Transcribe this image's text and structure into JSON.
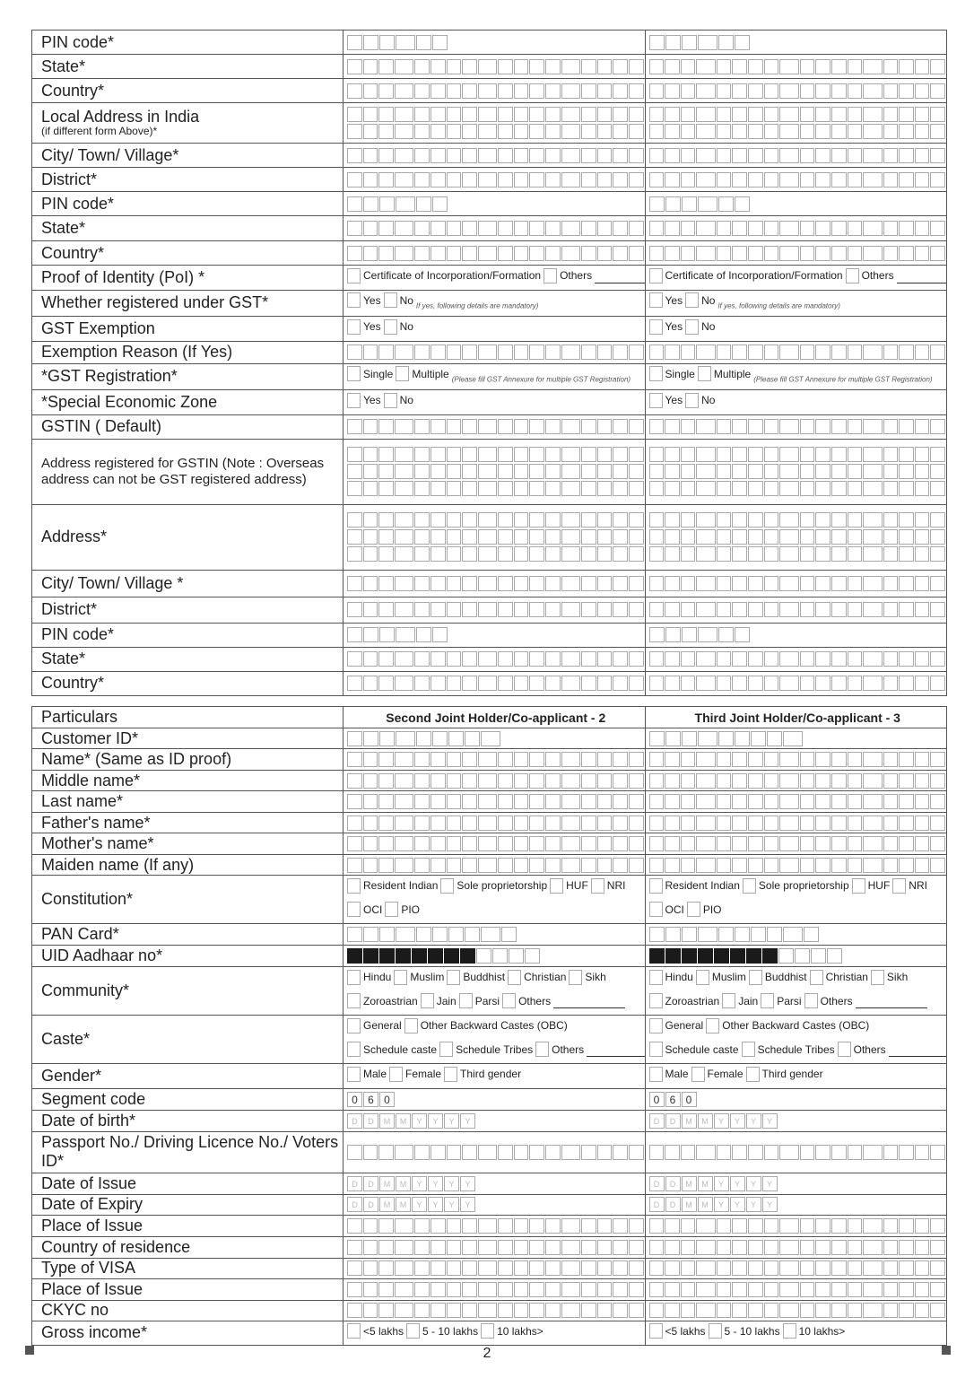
{
  "top_rows": [
    {
      "label": "PIN code*",
      "cell": {
        "kind": "boxes",
        "n": 6
      }
    },
    {
      "label": "State*",
      "cell": {
        "kind": "boxes",
        "n": 18
      }
    },
    {
      "label": "Country*",
      "cell": {
        "kind": "boxes",
        "n": 18
      }
    },
    {
      "label": "Local Address in India",
      "sub": "(if different form Above)*",
      "cell": {
        "kind": "boxes",
        "n": 18,
        "lines": 2
      }
    },
    {
      "label": "City/ Town/ Village*",
      "cell": {
        "kind": "boxes",
        "n": 18
      }
    },
    {
      "label": "District*",
      "cell": {
        "kind": "boxes",
        "n": 18
      }
    },
    {
      "label": "PIN code*",
      "cell": {
        "kind": "boxes",
        "n": 6
      }
    },
    {
      "label": "State*",
      "cell": {
        "kind": "boxes",
        "n": 18
      }
    },
    {
      "label": "Country*",
      "cell": {
        "kind": "boxes",
        "n": 18
      }
    },
    {
      "label": "Proof of Identity (PoI) *",
      "cell": {
        "kind": "options",
        "lines": [
          [
            "Certificate of Incorporation/Formation",
            "Others"
          ]
        ],
        "blank": true
      }
    },
    {
      "label": "Whether registered under GST*",
      "cell": {
        "kind": "options",
        "lines": [
          [
            "Yes",
            "No"
          ]
        ],
        "note": "If yes, following details are mandatory)"
      }
    },
    {
      "label": "GST Exemption",
      "cell": {
        "kind": "options",
        "lines": [
          [
            "Yes",
            "No"
          ]
        ]
      }
    },
    {
      "label": "Exemption Reason (If Yes)",
      "cell": {
        "kind": "boxes",
        "n": 18
      }
    },
    {
      "label": "*GST Registration*",
      "cell": {
        "kind": "options",
        "lines": [
          [
            "Single",
            "Multiple"
          ]
        ],
        "note": "(Please fill GST Annexure for multiple GST Registration)"
      }
    },
    {
      "label": "*Special Economic Zone",
      "cell": {
        "kind": "options",
        "lines": [
          [
            "Yes",
            "No"
          ]
        ]
      }
    },
    {
      "label": "GSTIN ( Default)",
      "cell": {
        "kind": "boxes",
        "n": 18
      }
    },
    {
      "label": "Address registered for GSTIN (Note : Overseas address can not be GST registered address)",
      "small": true,
      "cell": {
        "kind": "boxes",
        "n": 18,
        "lines": 3
      }
    },
    {
      "label": "Address*",
      "cell": {
        "kind": "boxes",
        "n": 18,
        "lines": 3
      }
    },
    {
      "label": "City/ Town/ Village *",
      "cell": {
        "kind": "boxes",
        "n": 18
      }
    },
    {
      "label": "District*",
      "cell": {
        "kind": "boxes",
        "n": 18
      }
    },
    {
      "label": "PIN code*",
      "cell": {
        "kind": "boxes",
        "n": 6
      }
    },
    {
      "label": "State*",
      "cell": {
        "kind": "boxes",
        "n": 18
      }
    },
    {
      "label": "Country*",
      "cell": {
        "kind": "boxes",
        "n": 18
      }
    }
  ],
  "bottom_header": {
    "label": "Particulars",
    "col2": "Second Joint Holder/Co-applicant - 2",
    "col3": "Third Joint Holder/Co-applicant - 3"
  },
  "date_letters": [
    "D",
    "D",
    "M",
    "M",
    "Y",
    "Y",
    "Y",
    "Y"
  ],
  "segment_code": [
    "0",
    "6",
    "0"
  ],
  "bottom_rows": [
    {
      "label": "Customer ID*",
      "cell": {
        "kind": "boxes",
        "n": 9
      }
    },
    {
      "label": "Name* (Same as ID proof)",
      "cell": {
        "kind": "boxes",
        "n": 18
      }
    },
    {
      "label": "Middle name*",
      "cell": {
        "kind": "boxes",
        "n": 18
      }
    },
    {
      "label": "Last name*",
      "cell": {
        "kind": "boxes",
        "n": 18
      }
    },
    {
      "label": "Father's name*",
      "cell": {
        "kind": "boxes",
        "n": 18
      }
    },
    {
      "label": "Mother's name*",
      "cell": {
        "kind": "boxes",
        "n": 18
      }
    },
    {
      "label": "Maiden name (If any)",
      "cell": {
        "kind": "boxes",
        "n": 18
      }
    },
    {
      "label": "Constitution*",
      "cell": {
        "kind": "options",
        "lines": [
          [
            "Resident Indian",
            "Sole proprietorship",
            "HUF",
            "NRI"
          ],
          [
            "OCI",
            "PIO"
          ]
        ]
      }
    },
    {
      "label": "PAN Card*",
      "cell": {
        "kind": "boxes",
        "n": 10
      }
    },
    {
      "label": "UID Aadhaar no*",
      "cell": {
        "kind": "masked",
        "masked": 8,
        "n": 12
      }
    },
    {
      "label": "Community*",
      "cell": {
        "kind": "options",
        "lines": [
          [
            "Hindu",
            "Muslim",
            "Buddhist",
            "Christian",
            "Sikh"
          ],
          [
            "Zoroastrian",
            "Jain",
            "Parsi",
            "Others"
          ]
        ],
        "blank": true
      }
    },
    {
      "label": "Caste*",
      "cell": {
        "kind": "options",
        "lines": [
          [
            "General",
            "Other Backward Castes (OBC)"
          ],
          [
            "Schedule caste",
            "Schedule Tribes",
            "Others"
          ]
        ],
        "blank": true
      }
    },
    {
      "label": "Gender*",
      "cell": {
        "kind": "options",
        "lines": [
          [
            "Male",
            "Female",
            "Third gender"
          ]
        ]
      }
    },
    {
      "label": "Segment code",
      "cell": {
        "kind": "digits"
      }
    },
    {
      "label": "Date of birth*",
      "cell": {
        "kind": "date"
      }
    },
    {
      "label": "Passport No./ Driving Licence No./ Voters ID*",
      "cell": {
        "kind": "boxes",
        "n": 18
      }
    },
    {
      "label": "Date of Issue",
      "cell": {
        "kind": "date"
      }
    },
    {
      "label": "Date of Expiry",
      "cell": {
        "kind": "date"
      }
    },
    {
      "label": "Place of Issue",
      "cell": {
        "kind": "boxes",
        "n": 18
      }
    },
    {
      "label": "Country of residence",
      "cell": {
        "kind": "boxes",
        "n": 18
      }
    },
    {
      "label": "Type of VISA",
      "cell": {
        "kind": "boxes",
        "n": 18
      }
    },
    {
      "label": "Place of Issue",
      "cell": {
        "kind": "boxes",
        "n": 18
      }
    },
    {
      "label": "CKYC no",
      "cell": {
        "kind": "boxes",
        "n": 18
      }
    },
    {
      "label": "Gross income*",
      "cell": {
        "kind": "options",
        "lines": [
          [
            "<5 lakhs",
            "5 - 10 lakhs",
            "10 lakhs>"
          ]
        ]
      }
    }
  ],
  "page_number": "2"
}
